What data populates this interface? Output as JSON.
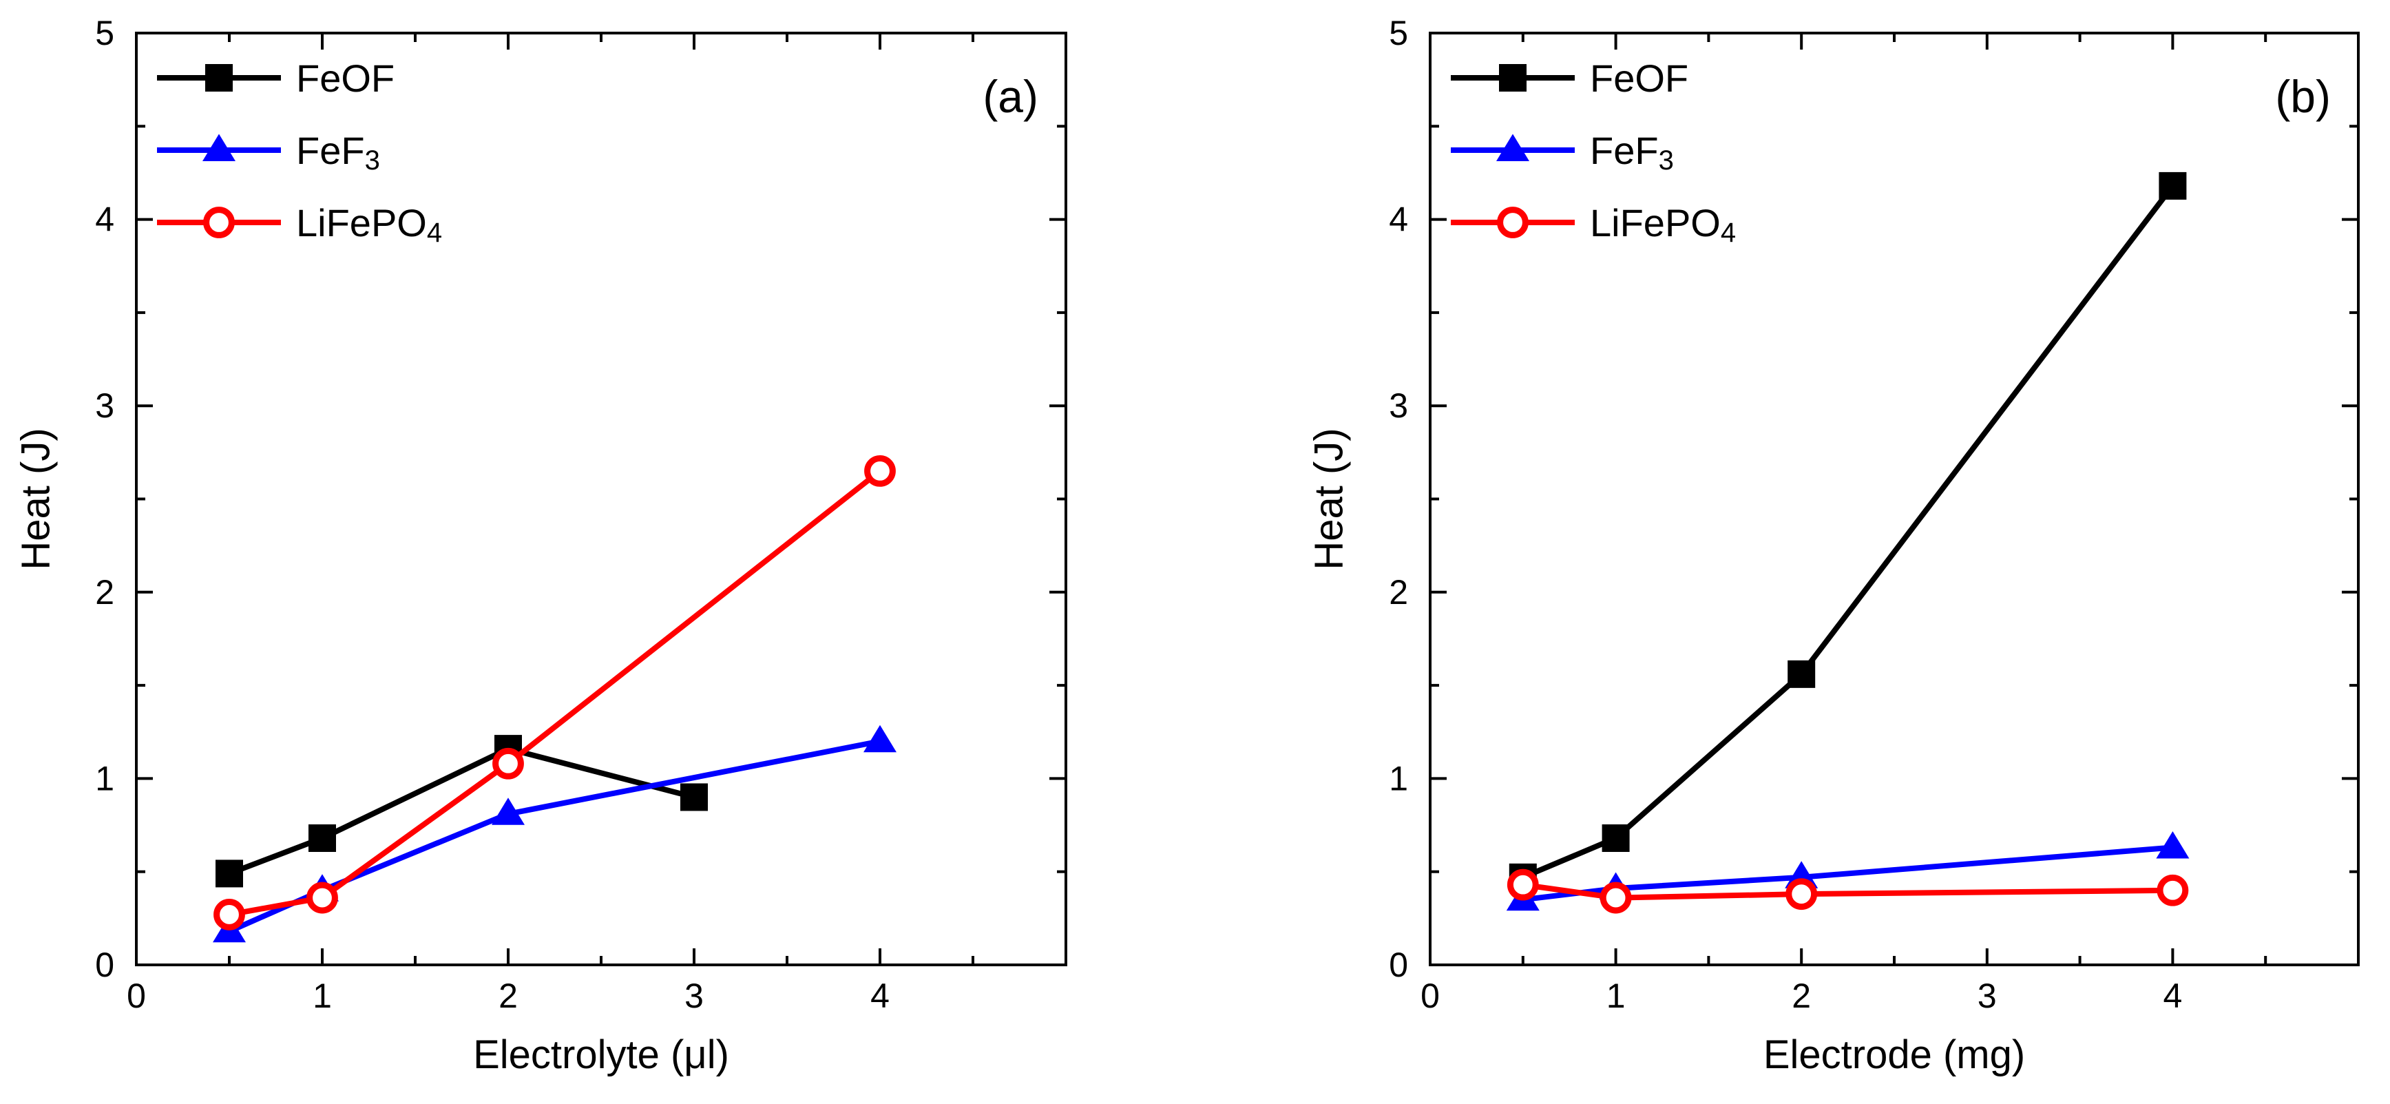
{
  "chart_data": [
    {
      "type": "line",
      "panel_label": "(a)",
      "xlabel": "Electrolyte (μl)",
      "ylabel": "Heat (J)",
      "xlim": [
        0,
        5
      ],
      "ylim": [
        0,
        5
      ],
      "xticks": [
        0,
        1,
        2,
        3,
        4
      ],
      "yticks": [
        0,
        1,
        2,
        3,
        4,
        5
      ],
      "legend_position": "top-left",
      "series": [
        {
          "name": "FeOF",
          "label_main": "FeOF",
          "label_sub": "",
          "color": "#000000",
          "marker": "square",
          "x": [
            0.5,
            1,
            2,
            3
          ],
          "y": [
            0.49,
            0.68,
            1.16,
            0.9
          ]
        },
        {
          "name": "FeF3",
          "label_main": "FeF",
          "label_sub": "3",
          "color": "#0000ff",
          "marker": "triangle",
          "x": [
            0.5,
            1,
            2,
            4
          ],
          "y": [
            0.18,
            0.4,
            0.81,
            1.2
          ]
        },
        {
          "name": "LiFePO4",
          "label_main": "LiFePO",
          "label_sub": "4",
          "color": "#ff0000",
          "marker": "circle",
          "x": [
            0.5,
            1,
            2,
            4
          ],
          "y": [
            0.27,
            0.36,
            1.08,
            2.65
          ]
        }
      ]
    },
    {
      "type": "line",
      "panel_label": "(b)",
      "xlabel": "Electrode (mg)",
      "ylabel": "Heat  (J)",
      "xlim": [
        0,
        5
      ],
      "ylim": [
        0,
        5
      ],
      "xticks": [
        0,
        1,
        2,
        3,
        4
      ],
      "yticks": [
        0,
        1,
        2,
        3,
        4,
        5
      ],
      "legend_position": "top-left",
      "series": [
        {
          "name": "FeOF",
          "label_main": "FeOF",
          "label_sub": "",
          "color": "#000000",
          "marker": "square",
          "x": [
            0.5,
            1,
            2,
            4
          ],
          "y": [
            0.47,
            0.68,
            1.56,
            4.18
          ]
        },
        {
          "name": "FeF3",
          "label_main": "FeF",
          "label_sub": "3",
          "color": "#0000ff",
          "marker": "triangle",
          "x": [
            0.5,
            1,
            2,
            4
          ],
          "y": [
            0.35,
            0.41,
            0.47,
            0.63
          ]
        },
        {
          "name": "LiFePO4",
          "label_main": "LiFePO",
          "label_sub": "4",
          "color": "#ff0000",
          "marker": "circle",
          "x": [
            0.5,
            1,
            2,
            4
          ],
          "y": [
            0.43,
            0.36,
            0.38,
            0.4
          ]
        }
      ]
    }
  ]
}
